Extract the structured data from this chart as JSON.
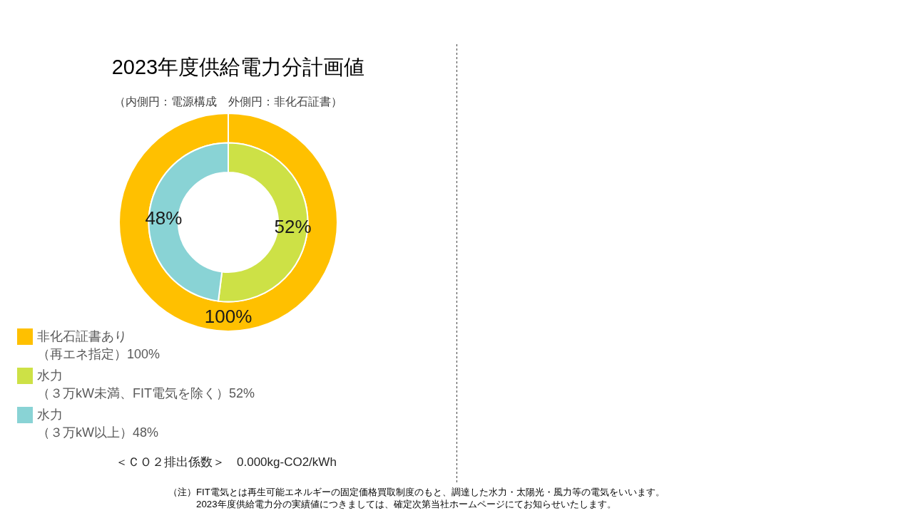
{
  "chart_data": {
    "type": "donut",
    "title": "2023年度供給電力分計画値",
    "subtitle": "（内側円：電源構成　外側円：非化石証書）",
    "categories": [
      "非化石証書あり（再エネ指定）",
      "水力（３万kW未満、FIT電気を除く）",
      "水力（３万kW以上）"
    ],
    "colors": [
      "#ffc000",
      "#cde146",
      "#89d3d5"
    ],
    "series": [
      {
        "values": [
          100,
          null,
          null
        ],
        "value_labels": [
          "100%",
          null,
          null
        ]
      },
      {
        "values": [
          null,
          52,
          48
        ],
        "value_labels": [
          null,
          "52%",
          "48%"
        ]
      }
    ],
    "legend": "bottom left",
    "annotations": [
      "＜ＣＯ２排出係数＞　0.000kg-CO2/kWh",
      "（注）FIT電気とは再生可能エネルギーの固定価格買取制度のもと、調達した水力・太陽光・風力等の電気をいいます。",
      "2023年度供給電力分の実績値につきましては、確定次第当社ホームページにてお知らせいたします。"
    ]
  }
}
